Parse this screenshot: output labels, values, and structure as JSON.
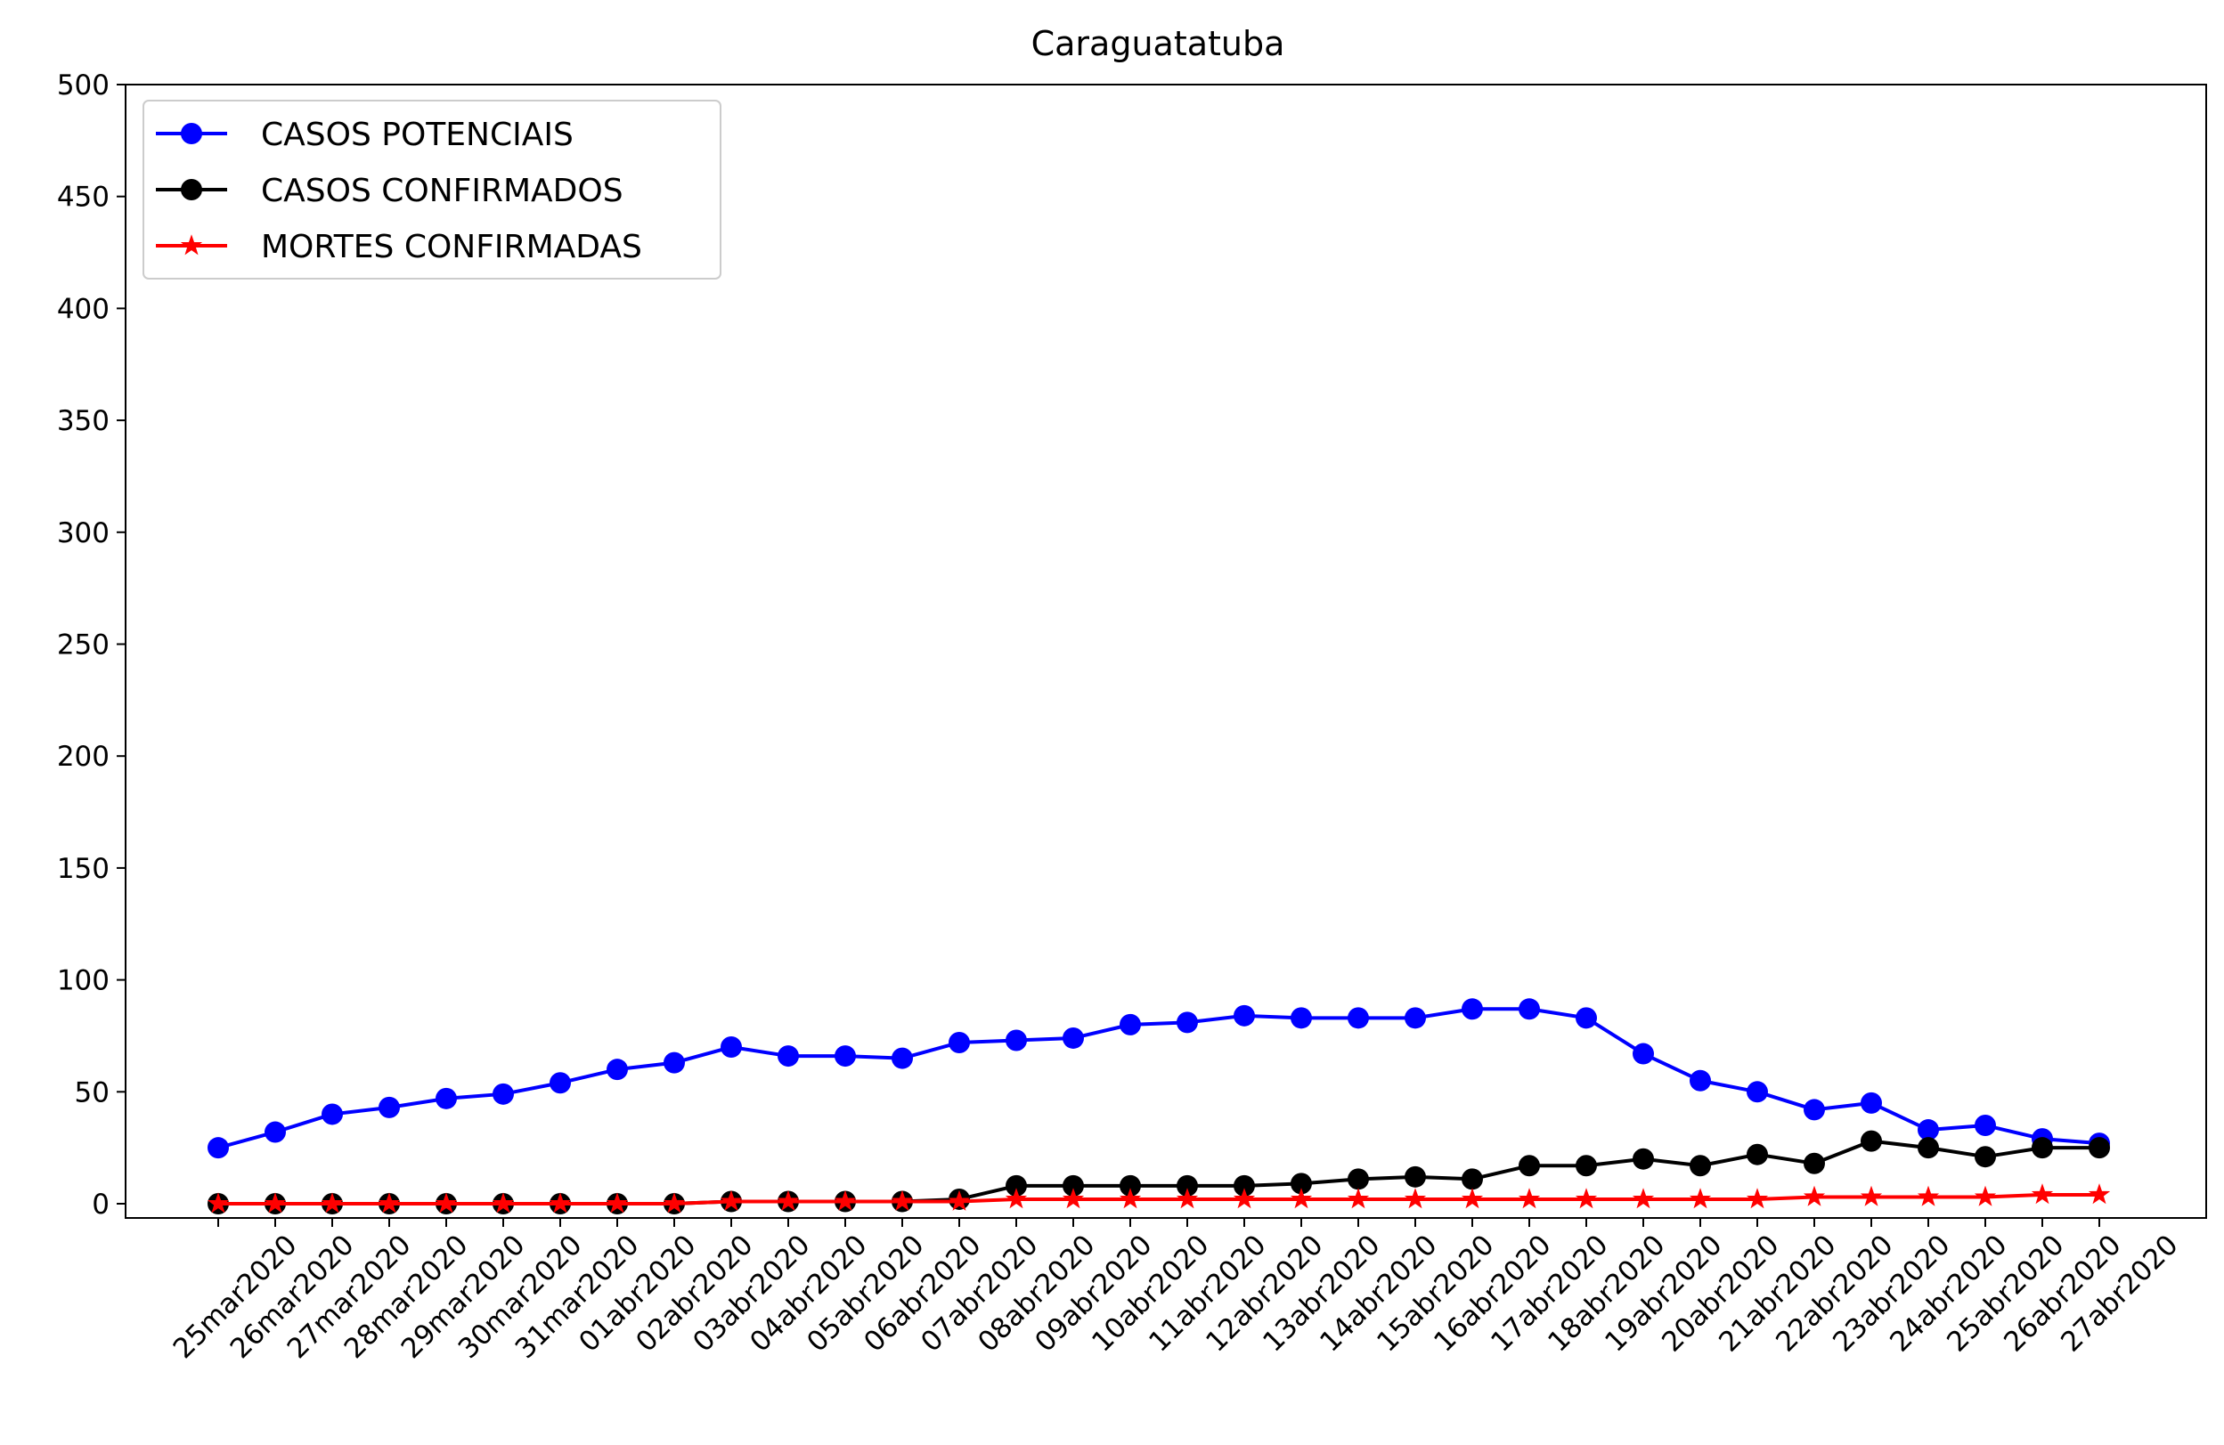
{
  "chart_data": {
    "type": "line",
    "title": "Caraguatatuba",
    "xlabel": "",
    "ylabel": "",
    "ylim": [
      0,
      500
    ],
    "yticks": [
      0,
      50,
      100,
      150,
      200,
      250,
      300,
      350,
      400,
      450,
      500
    ],
    "grid": false,
    "legend_position": "top-left",
    "categories": [
      "25mar2020",
      "26mar2020",
      "27mar2020",
      "28mar2020",
      "29mar2020",
      "30mar2020",
      "31mar2020",
      "01abr2020",
      "02abr2020",
      "03abr2020",
      "04abr2020",
      "05abr2020",
      "06abr2020",
      "07abr2020",
      "08abr2020",
      "09abr2020",
      "10abr2020",
      "11abr2020",
      "12abr2020",
      "13abr2020",
      "14abr2020",
      "15abr2020",
      "16abr2020",
      "17abr2020",
      "18abr2020",
      "19abr2020",
      "20abr2020",
      "21abr2020",
      "22abr2020",
      "23abr2020",
      "24abr2020",
      "25abr2020",
      "26abr2020",
      "27abr2020"
    ],
    "series": [
      {
        "name": "CASOS POTENCIAIS",
        "color": "#0000ff",
        "marker": "circle",
        "values": [
          25,
          32,
          40,
          43,
          47,
          49,
          54,
          60,
          63,
          70,
          66,
          66,
          65,
          72,
          73,
          74,
          80,
          81,
          84,
          83,
          83,
          83,
          87,
          87,
          83,
          67,
          55,
          50,
          42,
          45,
          33,
          35,
          29,
          27
        ]
      },
      {
        "name": "CASOS CONFIRMADOS",
        "color": "#000000",
        "marker": "circle",
        "values": [
          0,
          0,
          0,
          0,
          0,
          0,
          0,
          0,
          0,
          1,
          1,
          1,
          1,
          2,
          8,
          8,
          8,
          8,
          8,
          9,
          11,
          12,
          11,
          17,
          17,
          20,
          17,
          22,
          18,
          28,
          25,
          21,
          25,
          25
        ]
      },
      {
        "name": "MORTES CONFIRMADAS",
        "color": "#ff0000",
        "marker": "star",
        "values": [
          0,
          0,
          0,
          0,
          0,
          0,
          0,
          0,
          0,
          1,
          1,
          1,
          1,
          1,
          2,
          2,
          2,
          2,
          2,
          2,
          2,
          2,
          2,
          2,
          2,
          2,
          2,
          2,
          3,
          3,
          3,
          3,
          4,
          4
        ]
      }
    ]
  }
}
